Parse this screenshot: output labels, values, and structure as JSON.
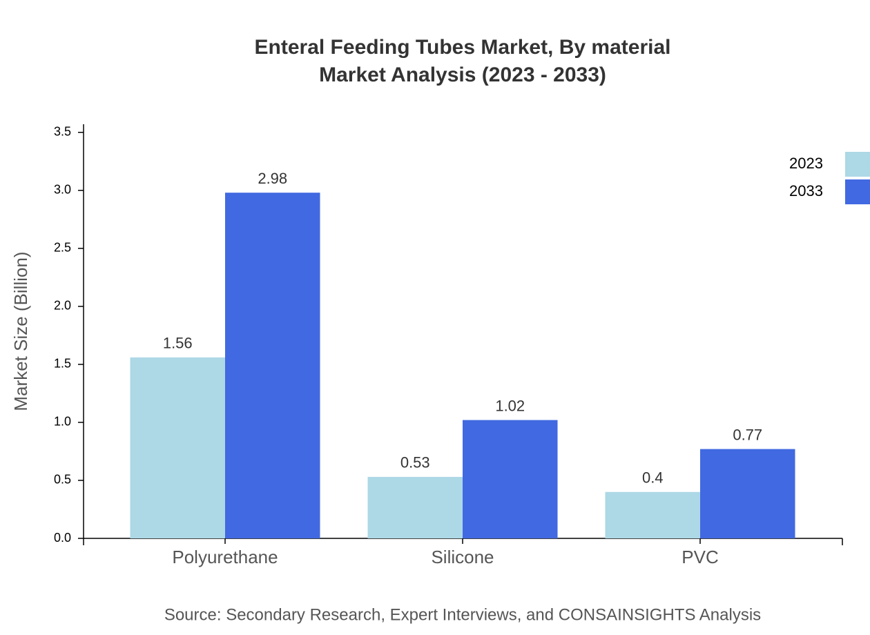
{
  "chart_data": {
    "type": "bar",
    "title": "Enteral Feeding Tubes Market, By material",
    "subtitle": "Market Analysis (2023 - 2033)",
    "y_label": "Market Size (Billion)",
    "source": "Source: Secondary Research, Expert Interviews, and CONSAINSIGHTS Analysis",
    "categories": [
      "Polyurethane",
      "Silicone",
      "PVC"
    ],
    "series": [
      {
        "name": "2023",
        "color": "#add8e6",
        "values": [
          1.56,
          0.53,
          0.4
        ]
      },
      {
        "name": "2033",
        "color": "#4169e1",
        "values": [
          2.98,
          1.02,
          0.77
        ]
      }
    ],
    "ylim": [
      0,
      3.57
    ],
    "yticks": [
      {
        "value": 0,
        "label": "0.0"
      },
      0.5,
      {
        "value": 1,
        "label": "1.0"
      },
      1.5,
      {
        "value": 2,
        "label": "2.0"
      },
      2.5,
      {
        "value": 3,
        "label": "3.0"
      },
      3.5
    ],
    "legend": "top-right"
  }
}
